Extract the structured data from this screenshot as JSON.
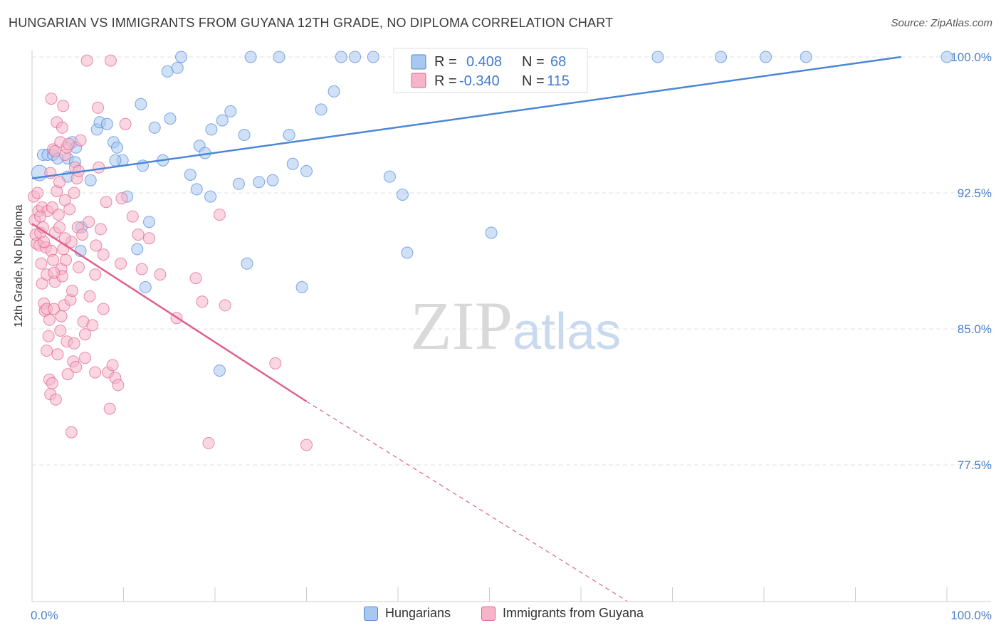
{
  "chart_data": {
    "type": "scatter",
    "title": "HUNGARIAN VS IMMIGRANTS FROM GUYANA 12TH GRADE, NO DIPLOMA CORRELATION CHART",
    "source": "Source: ZipAtlas.com",
    "xlabel": "",
    "ylabel": "12th Grade, No Diploma",
    "xlim": [
      0,
      100
    ],
    "ylim": [
      70,
      101
    ],
    "x_tick_labels": [
      "0.0%",
      "100.0%"
    ],
    "y_ticks": [
      {
        "value": 100.0,
        "label": "100.0%"
      },
      {
        "value": 92.5,
        "label": "92.5%"
      },
      {
        "value": 85.0,
        "label": "85.0%"
      },
      {
        "value": 77.5,
        "label": "77.5%"
      }
    ],
    "watermark": {
      "left": "ZIP",
      "right": "atlas"
    },
    "legend": [
      {
        "r_label": "R =",
        "r_value": "0.408",
        "n_label": "N =",
        "n_value": "68"
      },
      {
        "r_label": "R =",
        "r_value": "-0.340",
        "n_label": "N =",
        "n_value": "115"
      }
    ],
    "series": [
      {
        "name": "Hungarians",
        "color": "#4a86d8",
        "fill": "#a9c8f0",
        "trend": {
          "x": [
            0,
            95
          ],
          "y": [
            93.3,
            100.0
          ],
          "style": "solid"
        },
        "points": [
          [
            0.8,
            93.6
          ],
          [
            1.2,
            94.6
          ],
          [
            1.7,
            94.6
          ],
          [
            2.3,
            94.6
          ],
          [
            2.8,
            94.4
          ],
          [
            3.9,
            94.4
          ],
          [
            3.9,
            93.4
          ],
          [
            4.7,
            94.2
          ],
          [
            6.4,
            93.2
          ],
          [
            4.4,
            95.3
          ],
          [
            4.8,
            95.0
          ],
          [
            7.1,
            96.0
          ],
          [
            7.4,
            96.4
          ],
          [
            8.2,
            96.3
          ],
          [
            8.9,
            95.3
          ],
          [
            9.3,
            95.0
          ],
          [
            9.9,
            94.3
          ],
          [
            10.4,
            92.3
          ],
          [
            11.5,
            89.4
          ],
          [
            11.9,
            97.4
          ],
          [
            12.1,
            94.0
          ],
          [
            12.4,
            87.3
          ],
          [
            12.8,
            90.9
          ],
          [
            13.4,
            96.1
          ],
          [
            14.3,
            94.3
          ],
          [
            14.8,
            99.2
          ],
          [
            15.1,
            96.6
          ],
          [
            15.9,
            99.4
          ],
          [
            16.3,
            100.0
          ],
          [
            17.3,
            93.5
          ],
          [
            18.0,
            92.7
          ],
          [
            18.3,
            95.1
          ],
          [
            18.9,
            94.7
          ],
          [
            19.5,
            92.3
          ],
          [
            19.6,
            96.0
          ],
          [
            20.5,
            82.7
          ],
          [
            20.8,
            96.5
          ],
          [
            21.7,
            97.0
          ],
          [
            22.6,
            93.0
          ],
          [
            23.2,
            95.7
          ],
          [
            23.5,
            88.6
          ],
          [
            23.9,
            100.0
          ],
          [
            24.8,
            93.1
          ],
          [
            26.3,
            93.2
          ],
          [
            27.0,
            100.0
          ],
          [
            28.1,
            95.7
          ],
          [
            28.5,
            94.1
          ],
          [
            29.5,
            87.3
          ],
          [
            30.0,
            93.7
          ],
          [
            31.6,
            97.1
          ],
          [
            33.0,
            98.1
          ],
          [
            33.8,
            100.0
          ],
          [
            35.3,
            100.0
          ],
          [
            37.3,
            100.0
          ],
          [
            39.1,
            93.4
          ],
          [
            40.5,
            92.4
          ],
          [
            41.0,
            89.2
          ],
          [
            50.2,
            90.3
          ],
          [
            51.2,
            100.0
          ],
          [
            54.3,
            100.0
          ],
          [
            68.4,
            100.0
          ],
          [
            75.3,
            100.0
          ],
          [
            80.2,
            100.0
          ],
          [
            84.6,
            100.0
          ],
          [
            100.0,
            100.0
          ],
          [
            5.3,
            89.3
          ],
          [
            5.4,
            90.6
          ],
          [
            9.1,
            94.3
          ]
        ]
      },
      {
        "name": "Immigrants from Guyana",
        "color": "#e0608c",
        "fill": "#f6b4c9",
        "trend": {
          "x": [
            0,
            30
          ],
          "y": [
            90.8,
            81.0
          ],
          "style": "solid",
          "dashed_to": [
            65,
            70.0
          ]
        },
        "points": [
          [
            0.2,
            92.3
          ],
          [
            0.3,
            91.0
          ],
          [
            0.4,
            90.2
          ],
          [
            0.5,
            89.7
          ],
          [
            0.6,
            92.5
          ],
          [
            0.7,
            91.5
          ],
          [
            0.8,
            89.6
          ],
          [
            0.9,
            90.3
          ],
          [
            1.0,
            88.6
          ],
          [
            1.1,
            87.5
          ],
          [
            1.1,
            91.7
          ],
          [
            1.2,
            90.6
          ],
          [
            1.3,
            86.4
          ],
          [
            1.4,
            86.0
          ],
          [
            1.5,
            89.5
          ],
          [
            1.6,
            88.0
          ],
          [
            1.6,
            86.1
          ],
          [
            1.7,
            91.5
          ],
          [
            1.8,
            84.6
          ],
          [
            1.9,
            82.2
          ],
          [
            2.0,
            81.4
          ],
          [
            2.0,
            93.6
          ],
          [
            2.1,
            89.3
          ],
          [
            2.1,
            97.7
          ],
          [
            2.2,
            91.7
          ],
          [
            2.3,
            94.9
          ],
          [
            2.3,
            88.8
          ],
          [
            2.4,
            86.1
          ],
          [
            2.5,
            90.3
          ],
          [
            2.5,
            87.6
          ],
          [
            2.6,
            81.1
          ],
          [
            2.7,
            96.4
          ],
          [
            2.7,
            92.6
          ],
          [
            2.8,
            83.6
          ],
          [
            2.9,
            91.3
          ],
          [
            3.0,
            90.6
          ],
          [
            3.1,
            95.3
          ],
          [
            3.2,
            88.3
          ],
          [
            3.2,
            85.7
          ],
          [
            3.3,
            96.1
          ],
          [
            3.3,
            87.9
          ],
          [
            3.4,
            97.3
          ],
          [
            3.4,
            89.4
          ],
          [
            3.5,
            86.3
          ],
          [
            3.6,
            94.6
          ],
          [
            3.6,
            92.1
          ],
          [
            3.7,
            88.8
          ],
          [
            3.8,
            95.0
          ],
          [
            3.8,
            84.3
          ],
          [
            3.9,
            82.5
          ],
          [
            4.0,
            95.2
          ],
          [
            4.1,
            91.6
          ],
          [
            4.2,
            86.6
          ],
          [
            4.3,
            89.8
          ],
          [
            4.4,
            87.1
          ],
          [
            4.5,
            83.2
          ],
          [
            4.6,
            84.2
          ],
          [
            4.7,
            93.9
          ],
          [
            4.8,
            82.9
          ],
          [
            4.9,
            93.3
          ],
          [
            5.0,
            90.6
          ],
          [
            5.1,
            88.4
          ],
          [
            5.3,
            95.4
          ],
          [
            5.5,
            90.2
          ],
          [
            5.6,
            85.4
          ],
          [
            5.8,
            84.7
          ],
          [
            6.0,
            99.8
          ],
          [
            6.3,
            86.8
          ],
          [
            6.6,
            85.2
          ],
          [
            6.9,
            88.0
          ],
          [
            7.0,
            89.6
          ],
          [
            7.2,
            97.2
          ],
          [
            7.3,
            93.9
          ],
          [
            7.5,
            90.5
          ],
          [
            7.8,
            89.1
          ],
          [
            8.1,
            92.0
          ],
          [
            8.3,
            82.6
          ],
          [
            8.5,
            80.6
          ],
          [
            8.8,
            83.0
          ],
          [
            9.1,
            82.3
          ],
          [
            9.4,
            81.9
          ],
          [
            9.8,
            92.2
          ],
          [
            10.2,
            96.3
          ],
          [
            11.0,
            91.2
          ],
          [
            11.6,
            90.2
          ],
          [
            12.0,
            88.3
          ],
          [
            12.8,
            90.0
          ],
          [
            14.0,
            88.0
          ],
          [
            15.8,
            85.6
          ],
          [
            17.9,
            87.8
          ],
          [
            18.6,
            86.5
          ],
          [
            19.3,
            78.7
          ],
          [
            20.5,
            91.3
          ],
          [
            21.1,
            86.3
          ],
          [
            26.6,
            83.1
          ],
          [
            30.0,
            78.6
          ],
          [
            1.3,
            89.8
          ],
          [
            2.4,
            88.1
          ],
          [
            3.0,
            93.1
          ],
          [
            4.6,
            92.5
          ],
          [
            5.8,
            83.4
          ],
          [
            6.9,
            82.6
          ],
          [
            7.8,
            86.1
          ],
          [
            8.6,
            99.8
          ],
          [
            9.7,
            88.6
          ],
          [
            2.5,
            94.8
          ],
          [
            3.6,
            90.0
          ],
          [
            4.3,
            79.3
          ],
          [
            1.6,
            83.8
          ],
          [
            0.9,
            91.2
          ],
          [
            6.2,
            90.9
          ],
          [
            5.1,
            93.7
          ],
          [
            1.9,
            85.5
          ],
          [
            3.1,
            84.9
          ],
          [
            2.2,
            82.0
          ]
        ]
      }
    ]
  },
  "bottom_legend": [
    {
      "label": "Hungarians"
    },
    {
      "label": "Immigrants from Guyana"
    }
  ]
}
